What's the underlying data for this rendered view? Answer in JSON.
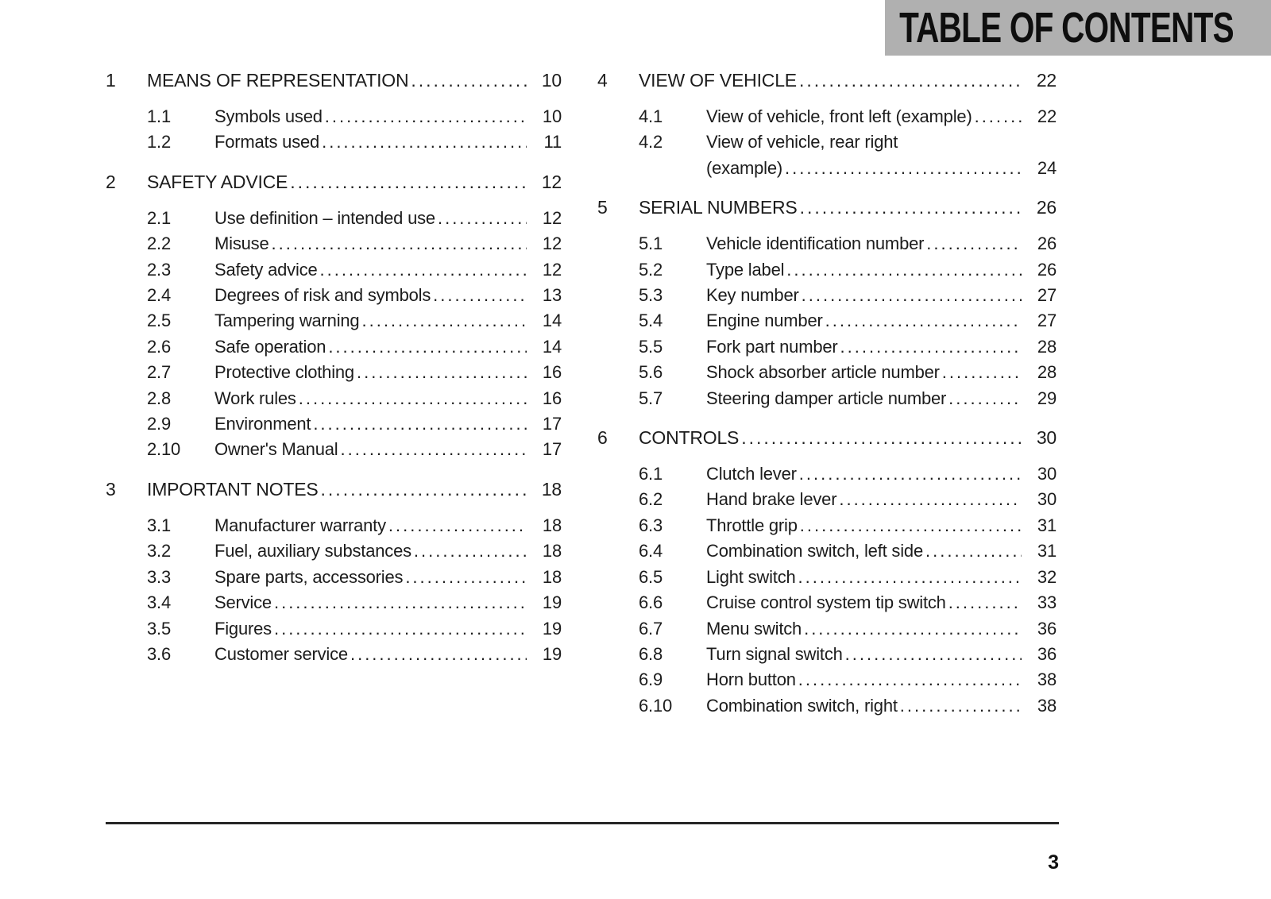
{
  "header": {
    "title": "TABLE OF CONTENTS"
  },
  "footer": {
    "page_number": "3"
  },
  "toc": {
    "columns": [
      {
        "sections": [
          {
            "number": "1",
            "title": "MEANS OF REPRESENTATION",
            "page": "10",
            "items": [
              {
                "number": "1.1",
                "title": "Symbols used",
                "page": "10"
              },
              {
                "number": "1.2",
                "title": "Formats used",
                "page": "11"
              }
            ]
          },
          {
            "number": "2",
            "title": "SAFETY ADVICE",
            "page": "12",
            "items": [
              {
                "number": "2.1",
                "title": "Use definition – intended use",
                "page": "12"
              },
              {
                "number": "2.2",
                "title": "Misuse",
                "page": "12"
              },
              {
                "number": "2.3",
                "title": "Safety advice",
                "page": "12"
              },
              {
                "number": "2.4",
                "title": "Degrees of risk and symbols",
                "page": "13"
              },
              {
                "number": "2.5",
                "title": "Tampering warning",
                "page": "14"
              },
              {
                "number": "2.6",
                "title": "Safe operation",
                "page": "14"
              },
              {
                "number": "2.7",
                "title": "Protective clothing",
                "page": "16"
              },
              {
                "number": "2.8",
                "title": "Work rules",
                "page": "16"
              },
              {
                "number": "2.9",
                "title": "Environment",
                "page": "17"
              },
              {
                "number": "2.10",
                "title": "Owner's Manual",
                "page": "17"
              }
            ]
          },
          {
            "number": "3",
            "title": "IMPORTANT NOTES",
            "page": "18",
            "items": [
              {
                "number": "3.1",
                "title": "Manufacturer warranty",
                "page": "18"
              },
              {
                "number": "3.2",
                "title": "Fuel, auxiliary substances",
                "page": "18"
              },
              {
                "number": "3.3",
                "title": "Spare parts, accessories",
                "page": "18"
              },
              {
                "number": "3.4",
                "title": "Service",
                "page": "19"
              },
              {
                "number": "3.5",
                "title": "Figures",
                "page": "19"
              },
              {
                "number": "3.6",
                "title": "Customer service",
                "page": "19"
              }
            ]
          }
        ]
      },
      {
        "sections": [
          {
            "number": "4",
            "title": "VIEW OF VEHICLE",
            "page": "22",
            "items": [
              {
                "number": "4.1",
                "title": "View of vehicle, front left (example)",
                "page": "22"
              },
              {
                "number": "4.2",
                "title": "View of vehicle, rear right",
                "title2": "(example)",
                "page": "24"
              }
            ]
          },
          {
            "number": "5",
            "title": "SERIAL NUMBERS",
            "page": "26",
            "items": [
              {
                "number": "5.1",
                "title": "Vehicle identification number",
                "page": "26"
              },
              {
                "number": "5.2",
                "title": "Type label",
                "page": "26"
              },
              {
                "number": "5.3",
                "title": "Key number",
                "page": "27"
              },
              {
                "number": "5.4",
                "title": "Engine number",
                "page": "27"
              },
              {
                "number": "5.5",
                "title": "Fork part number",
                "page": "28"
              },
              {
                "number": "5.6",
                "title": "Shock absorber article number",
                "page": "28"
              },
              {
                "number": "5.7",
                "title": "Steering damper article number",
                "page": "29"
              }
            ]
          },
          {
            "number": "6",
            "title": "CONTROLS",
            "page": "30",
            "items": [
              {
                "number": "6.1",
                "title": "Clutch lever",
                "page": "30"
              },
              {
                "number": "6.2",
                "title": "Hand brake lever",
                "page": "30"
              },
              {
                "number": "6.3",
                "title": "Throttle grip",
                "page": "31"
              },
              {
                "number": "6.4",
                "title": "Combination switch, left side",
                "page": "31"
              },
              {
                "number": "6.5",
                "title": "Light switch",
                "page": "32"
              },
              {
                "number": "6.6",
                "title": "Cruise control system tip switch",
                "page": "33"
              },
              {
                "number": "6.7",
                "title": "Menu switch",
                "page": "36"
              },
              {
                "number": "6.8",
                "title": "Turn signal switch",
                "page": "36"
              },
              {
                "number": "6.9",
                "title": "Horn button",
                "page": "38"
              },
              {
                "number": "6.10",
                "title": "Combination switch, right",
                "page": "38"
              }
            ]
          }
        ]
      }
    ]
  }
}
